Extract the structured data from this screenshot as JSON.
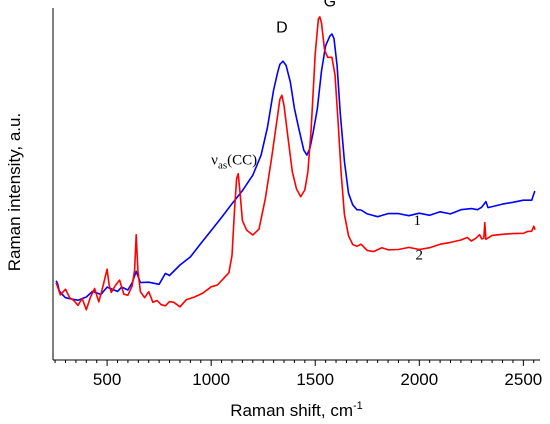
{
  "chart_data": {
    "type": "line",
    "xlabel": "Raman shift, cm",
    "xlabel_sup": "-1",
    "ylabel": "Raman intensity, a.u.",
    "xlim": [
      240,
      2580
    ],
    "ylim": [
      0,
      100
    ],
    "x_ticks": [
      500,
      1000,
      1500,
      2000,
      2500
    ],
    "annotations": [
      {
        "text": "D",
        "x": 1340,
        "y": 93.0,
        "style": "sans"
      },
      {
        "text": "G",
        "x": 1570,
        "y": 100.5,
        "style": "sans"
      },
      {
        "base": "ν",
        "sub": "as",
        "rest": "(CC)",
        "x": 1000,
        "y": 55.5,
        "style": "serif"
      }
    ],
    "series": [
      {
        "name": "1",
        "color": "#0000ff",
        "label_at": [
          1990,
          38.3
        ],
        "points": [
          [
            255,
            22.5
          ],
          [
            262,
            21.7
          ],
          [
            270,
            19.7
          ],
          [
            280,
            18.9
          ],
          [
            300,
            17.7
          ],
          [
            330,
            17.3
          ],
          [
            360,
            17.0
          ],
          [
            400,
            17.9
          ],
          [
            430,
            19.5
          ],
          [
            470,
            18.6
          ],
          [
            500,
            20.7
          ],
          [
            520,
            20.2
          ],
          [
            550,
            19.5
          ],
          [
            570,
            20.7
          ],
          [
            600,
            19.9
          ],
          [
            620,
            21.9
          ],
          [
            640,
            25.2
          ],
          [
            660,
            22.0
          ],
          [
            700,
            22.1
          ],
          [
            750,
            21.5
          ],
          [
            780,
            24.6
          ],
          [
            800,
            24.0
          ],
          [
            850,
            27.0
          ],
          [
            900,
            29.3
          ],
          [
            950,
            33.1
          ],
          [
            1000,
            36.8
          ],
          [
            1050,
            40.5
          ],
          [
            1100,
            44.4
          ],
          [
            1150,
            48.1
          ],
          [
            1200,
            52.5
          ],
          [
            1240,
            58.2
          ],
          [
            1270,
            66.0
          ],
          [
            1300,
            76.7
          ],
          [
            1320,
            81.9
          ],
          [
            1330,
            84.0
          ],
          [
            1345,
            84.9
          ],
          [
            1360,
            83.7
          ],
          [
            1380,
            79.0
          ],
          [
            1400,
            71.5
          ],
          [
            1420,
            66.0
          ],
          [
            1445,
            59.6
          ],
          [
            1460,
            58.2
          ],
          [
            1475,
            60.2
          ],
          [
            1490,
            64.6
          ],
          [
            1510,
            71.3
          ],
          [
            1530,
            82.1
          ],
          [
            1550,
            89.3
          ],
          [
            1570,
            92.0
          ],
          [
            1580,
            92.6
          ],
          [
            1590,
            91.3
          ],
          [
            1605,
            83.6
          ],
          [
            1620,
            70.3
          ],
          [
            1640,
            56.5
          ],
          [
            1660,
            47.4
          ],
          [
            1680,
            44.1
          ],
          [
            1700,
            42.7
          ],
          [
            1720,
            42.6
          ],
          [
            1750,
            41.5
          ],
          [
            1800,
            40.7
          ],
          [
            1850,
            41.6
          ],
          [
            1900,
            41.6
          ],
          [
            1950,
            41.0
          ],
          [
            2000,
            41.7
          ],
          [
            2050,
            41.1
          ],
          [
            2100,
            42.1
          ],
          [
            2150,
            41.5
          ],
          [
            2200,
            42.7
          ],
          [
            2250,
            43.0
          ],
          [
            2280,
            42.7
          ],
          [
            2300,
            43.4
          ],
          [
            2320,
            45.0
          ],
          [
            2330,
            43.3
          ],
          [
            2400,
            44.3
          ],
          [
            2450,
            44.8
          ],
          [
            2500,
            45.4
          ],
          [
            2540,
            45.4
          ],
          [
            2555,
            48.0
          ]
        ]
      },
      {
        "name": "2",
        "color": "#ff0000",
        "label_at": [
          2000,
          28.5
        ],
        "points": [
          [
            255,
            22.0
          ],
          [
            265,
            20.3
          ],
          [
            275,
            18.5
          ],
          [
            300,
            20.1
          ],
          [
            320,
            17.7
          ],
          [
            340,
            16.9
          ],
          [
            360,
            15.5
          ],
          [
            380,
            17.5
          ],
          [
            400,
            14.3
          ],
          [
            420,
            17.9
          ],
          [
            440,
            20.3
          ],
          [
            460,
            16.5
          ],
          [
            480,
            20.9
          ],
          [
            500,
            25.8
          ],
          [
            510,
            21.2
          ],
          [
            520,
            19.2
          ],
          [
            540,
            21.2
          ],
          [
            560,
            22.7
          ],
          [
            580,
            18.7
          ],
          [
            600,
            18.4
          ],
          [
            620,
            21.0
          ],
          [
            632,
            25.5
          ],
          [
            640,
            35.6
          ],
          [
            648,
            25.4
          ],
          [
            660,
            19.4
          ],
          [
            680,
            17.7
          ],
          [
            700,
            19.4
          ],
          [
            720,
            16.4
          ],
          [
            740,
            16.9
          ],
          [
            760,
            15.7
          ],
          [
            780,
            15.4
          ],
          [
            800,
            16.6
          ],
          [
            820,
            16.4
          ],
          [
            850,
            15.1
          ],
          [
            880,
            17.1
          ],
          [
            920,
            17.9
          ],
          [
            960,
            19.0
          ],
          [
            1000,
            20.8
          ],
          [
            1030,
            21.3
          ],
          [
            1060,
            23.2
          ],
          [
            1085,
            24.8
          ],
          [
            1100,
            29.7
          ],
          [
            1112,
            42.5
          ],
          [
            1122,
            51.5
          ],
          [
            1130,
            52.9
          ],
          [
            1138,
            48.0
          ],
          [
            1150,
            39.6
          ],
          [
            1170,
            36.9
          ],
          [
            1200,
            35.5
          ],
          [
            1230,
            37.2
          ],
          [
            1260,
            45.8
          ],
          [
            1290,
            57.2
          ],
          [
            1315,
            67.6
          ],
          [
            1330,
            74.1
          ],
          [
            1340,
            75.2
          ],
          [
            1350,
            72.3
          ],
          [
            1370,
            62.7
          ],
          [
            1390,
            53.5
          ],
          [
            1410,
            48.6
          ],
          [
            1430,
            46.4
          ],
          [
            1450,
            48.3
          ],
          [
            1465,
            53.5
          ],
          [
            1480,
            65.3
          ],
          [
            1500,
            87.0
          ],
          [
            1515,
            96.9
          ],
          [
            1522,
            97.5
          ],
          [
            1530,
            95.7
          ],
          [
            1545,
            88.0
          ],
          [
            1560,
            86.0
          ],
          [
            1580,
            86.0
          ],
          [
            1595,
            81.0
          ],
          [
            1610,
            67.6
          ],
          [
            1625,
            52.9
          ],
          [
            1640,
            41.4
          ],
          [
            1660,
            35.3
          ],
          [
            1680,
            32.8
          ],
          [
            1700,
            32.3
          ],
          [
            1720,
            32.9
          ],
          [
            1750,
            31.1
          ],
          [
            1780,
            30.8
          ],
          [
            1820,
            31.9
          ],
          [
            1850,
            31.3
          ],
          [
            1900,
            31.4
          ],
          [
            1950,
            32.0
          ],
          [
            2000,
            31.4
          ],
          [
            2050,
            31.9
          ],
          [
            2100,
            32.9
          ],
          [
            2150,
            33.4
          ],
          [
            2200,
            34.1
          ],
          [
            2230,
            34.8
          ],
          [
            2250,
            33.8
          ],
          [
            2270,
            34.5
          ],
          [
            2290,
            35.6
          ],
          [
            2300,
            34.4
          ],
          [
            2310,
            34.6
          ],
          [
            2315,
            39.0
          ],
          [
            2320,
            34.3
          ],
          [
            2350,
            35.4
          ],
          [
            2400,
            35.7
          ],
          [
            2450,
            35.9
          ],
          [
            2500,
            36.0
          ],
          [
            2520,
            36.5
          ],
          [
            2540,
            36.6
          ],
          [
            2550,
            38.0
          ],
          [
            2556,
            37.0
          ]
        ]
      }
    ]
  }
}
